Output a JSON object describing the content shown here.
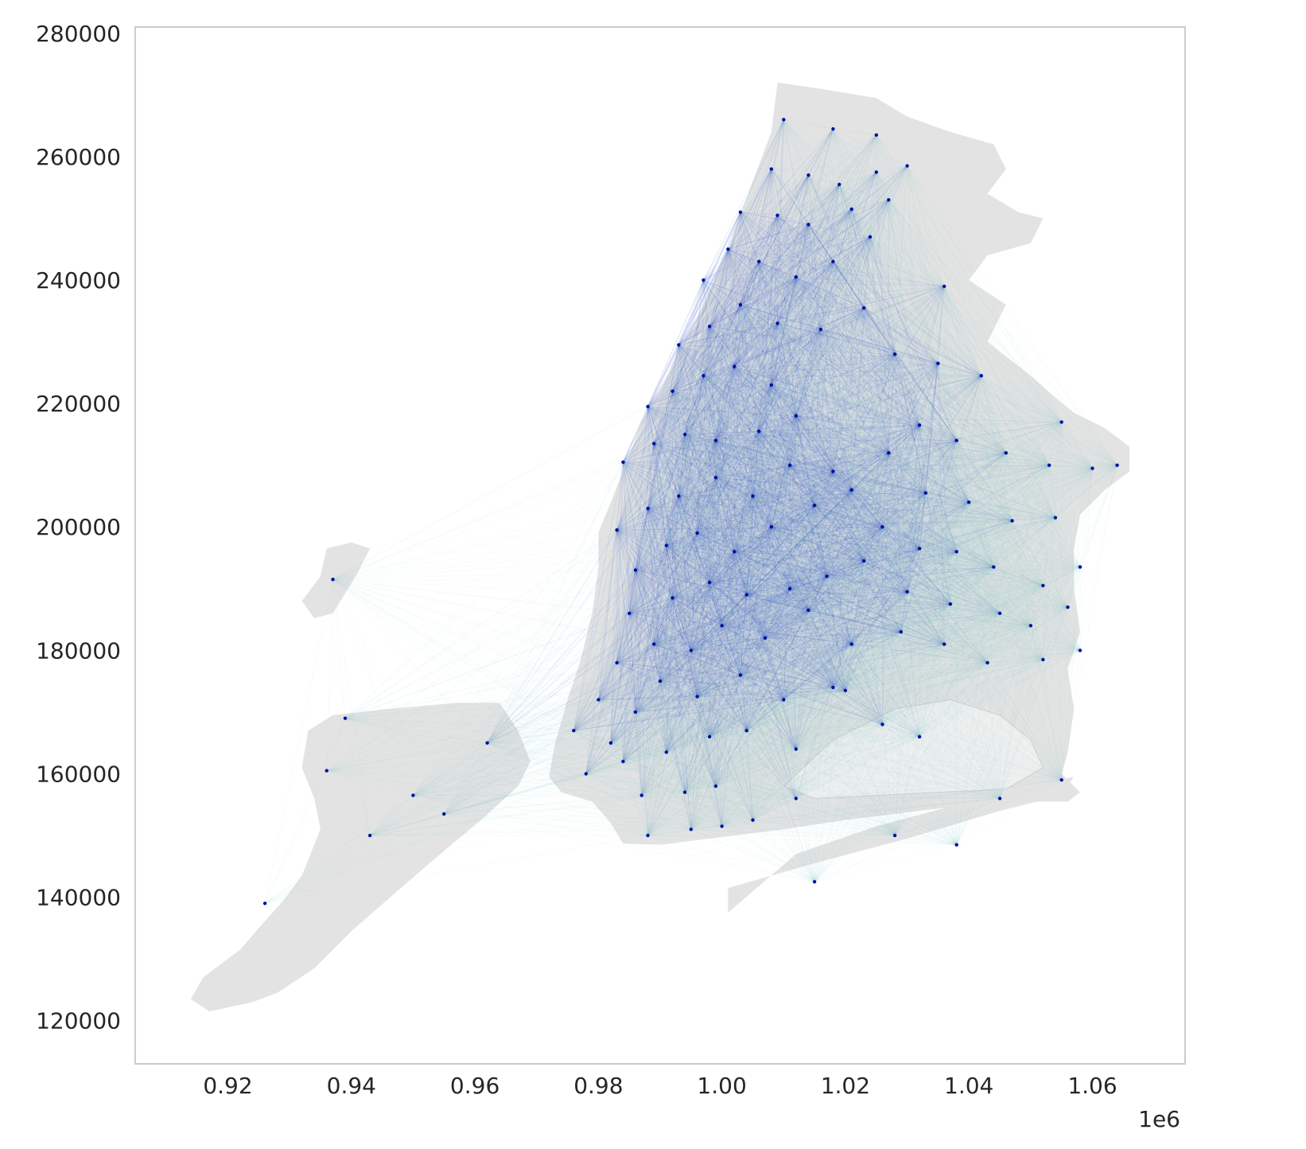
{
  "chart_data": {
    "type": "scatter",
    "title": "",
    "xlabel": "",
    "ylabel": "",
    "x_offset_label": "1e6",
    "xlim": [
      0.905,
      1.075
    ],
    "ylim": [
      113000,
      281000
    ],
    "grid": false,
    "x_ticks": [
      {
        "value": 0.92,
        "label": "0.92"
      },
      {
        "value": 0.94,
        "label": "0.94"
      },
      {
        "value": 0.96,
        "label": "0.96"
      },
      {
        "value": 0.98,
        "label": "0.98"
      },
      {
        "value": 1.0,
        "label": "1.00"
      },
      {
        "value": 1.02,
        "label": "1.02"
      },
      {
        "value": 1.04,
        "label": "1.04"
      },
      {
        "value": 1.06,
        "label": "1.06"
      }
    ],
    "y_ticks": [
      {
        "value": 120000,
        "label": "120000"
      },
      {
        "value": 140000,
        "label": "140000"
      },
      {
        "value": 160000,
        "label": "160000"
      },
      {
        "value": 180000,
        "label": "180000"
      },
      {
        "value": 200000,
        "label": "200000"
      },
      {
        "value": 220000,
        "label": "220000"
      },
      {
        "value": 240000,
        "label": "240000"
      },
      {
        "value": 260000,
        "label": "260000"
      },
      {
        "value": 280000,
        "label": "280000"
      }
    ],
    "colors": {
      "land": "#e3e3e3",
      "land_dark": "#d0d0d0",
      "flow_light": "#8fd0d0",
      "flow_dark": "#1530c0",
      "node": "#0010a0",
      "frame": "#cccccc"
    },
    "regions": [
      {
        "name": "staten-island",
        "points": [
          [
            0.924,
            123000
          ],
          [
            0.917,
            121500
          ],
          [
            0.914,
            123500
          ],
          [
            0.916,
            127000
          ],
          [
            0.922,
            131500
          ],
          [
            0.925,
            135000
          ],
          [
            0.929,
            139500
          ],
          [
            0.932,
            143500
          ],
          [
            0.935,
            151000
          ],
          [
            0.934,
            156000
          ],
          [
            0.932,
            161000
          ],
          [
            0.933,
            167000
          ],
          [
            0.937,
            169500
          ],
          [
            0.946,
            170500
          ],
          [
            0.957,
            171500
          ],
          [
            0.964,
            171500
          ],
          [
            0.967,
            167000
          ],
          [
            0.969,
            162000
          ],
          [
            0.967,
            158000
          ],
          [
            0.961,
            152500
          ],
          [
            0.955,
            147500
          ],
          [
            0.948,
            141500
          ],
          [
            0.94,
            134500
          ],
          [
            0.934,
            128500
          ],
          [
            0.928,
            124500
          ]
        ]
      },
      {
        "name": "bayonne-strip",
        "points": [
          [
            0.935,
            192000
          ],
          [
            0.936,
            196500
          ],
          [
            0.94,
            197500
          ],
          [
            0.943,
            196500
          ],
          [
            0.941,
            192500
          ],
          [
            0.937,
            186000
          ],
          [
            0.934,
            185200
          ],
          [
            0.932,
            188000
          ]
        ]
      },
      {
        "name": "manhattan-bronx-queens-brooklyn",
        "points": [
          [
            0.973,
            165000
          ],
          [
            0.975,
            172000
          ],
          [
            0.977,
            178000
          ],
          [
            0.979,
            186000
          ],
          [
            0.98,
            193500
          ],
          [
            0.98,
            199000
          ],
          [
            0.982,
            204000
          ],
          [
            0.985,
            211500
          ],
          [
            0.987,
            217000
          ],
          [
            0.99,
            222000
          ],
          [
            0.993,
            228500
          ],
          [
            0.997,
            236000
          ],
          [
            1.001,
            245000
          ],
          [
            1.005,
            256000
          ],
          [
            1.008,
            264000
          ],
          [
            1.009,
            272000
          ],
          [
            1.016,
            271000
          ],
          [
            1.025,
            269500
          ],
          [
            1.03,
            266500
          ],
          [
            1.037,
            264000
          ],
          [
            1.044,
            262000
          ],
          [
            1.046,
            258000
          ],
          [
            1.043,
            254000
          ],
          [
            1.048,
            251000
          ],
          [
            1.052,
            250000
          ],
          [
            1.05,
            246000
          ],
          [
            1.043,
            244000
          ],
          [
            1.04,
            240000
          ],
          [
            1.046,
            236000
          ],
          [
            1.043,
            230000
          ],
          [
            1.05,
            224500
          ],
          [
            1.054,
            221000
          ],
          [
            1.057,
            218500
          ],
          [
            1.062,
            216000
          ],
          [
            1.066,
            213000
          ],
          [
            1.066,
            209000
          ],
          [
            1.062,
            206000
          ],
          [
            1.058,
            202000
          ],
          [
            1.057,
            196500
          ],
          [
            1.057,
            190000
          ],
          [
            1.058,
            183000
          ],
          [
            1.056,
            177000
          ],
          [
            1.057,
            170500
          ],
          [
            1.056,
            163500
          ],
          [
            1.055,
            160000
          ],
          [
            1.058,
            157000
          ],
          [
            1.056,
            155500
          ],
          [
            1.045,
            155500
          ],
          [
            1.032,
            154000
          ],
          [
            1.02,
            152500
          ],
          [
            1.01,
            151000
          ],
          [
            0.998,
            149500
          ],
          [
            0.99,
            148500
          ],
          [
            0.984,
            148700
          ],
          [
            0.982,
            152000
          ],
          [
            0.979,
            155500
          ],
          [
            0.974,
            157000
          ],
          [
            0.972,
            159500
          ]
        ]
      },
      {
        "name": "rockaway",
        "points": [
          [
            1.001,
            137500
          ],
          [
            1.001,
            141500
          ],
          [
            1.015,
            145500
          ],
          [
            1.03,
            149500
          ],
          [
            1.045,
            154000
          ],
          [
            1.055,
            156500
          ],
          [
            1.057,
            159500
          ],
          [
            1.052,
            158500
          ],
          [
            1.04,
            155500
          ],
          [
            1.025,
            151500
          ],
          [
            1.012,
            147000
          ]
        ]
      }
    ],
    "inner_water": [
      {
        "name": "jamaica-bay",
        "points": [
          [
            1.01,
            158000
          ],
          [
            1.018,
            165500
          ],
          [
            1.028,
            170500
          ],
          [
            1.037,
            172000
          ],
          [
            1.045,
            169500
          ],
          [
            1.05,
            165500
          ],
          [
            1.052,
            161000
          ],
          [
            1.046,
            157500
          ],
          [
            1.035,
            157000
          ],
          [
            1.025,
            156500
          ],
          [
            1.015,
            156000
          ]
        ]
      }
    ],
    "nodes": [
      [
        0.988,
        150000
      ],
      [
        0.995,
        151000
      ],
      [
        1.0,
        151500
      ],
      [
        1.005,
        152500
      ],
      [
        1.012,
        156000
      ],
      [
        0.987,
        156500
      ],
      [
        0.994,
        157000
      ],
      [
        0.999,
        158000
      ],
      [
        0.978,
        160000
      ],
      [
        0.984,
        162000
      ],
      [
        0.976,
        167000
      ],
      [
        0.982,
        165000
      ],
      [
        0.991,
        163500
      ],
      [
        0.998,
        166000
      ],
      [
        1.004,
        167000
      ],
      [
        1.012,
        164000
      ],
      [
        0.98,
        172000
      ],
      [
        0.986,
        170000
      ],
      [
        0.99,
        175000
      ],
      [
        0.996,
        172500
      ],
      [
        1.003,
        176000
      ],
      [
        1.01,
        172000
      ],
      [
        1.018,
        174000
      ],
      [
        0.983,
        178000
      ],
      [
        0.989,
        181000
      ],
      [
        0.995,
        180000
      ],
      [
        1.0,
        184000
      ],
      [
        1.007,
        182000
      ],
      [
        1.014,
        186500
      ],
      [
        1.021,
        181000
      ],
      [
        0.985,
        186000
      ],
      [
        0.992,
        188500
      ],
      [
        0.998,
        191000
      ],
      [
        1.004,
        189000
      ],
      [
        1.011,
        190000
      ],
      [
        1.017,
        192000
      ],
      [
        1.023,
        194500
      ],
      [
        0.986,
        193000
      ],
      [
        0.991,
        197000
      ],
      [
        0.996,
        199000
      ],
      [
        1.002,
        196000
      ],
      [
        1.008,
        200000
      ],
      [
        1.015,
        203500
      ],
      [
        1.021,
        206000
      ],
      [
        0.983,
        199500
      ],
      [
        0.988,
        203000
      ],
      [
        0.993,
        205000
      ],
      [
        0.999,
        208000
      ],
      [
        1.005,
        205000
      ],
      [
        1.011,
        210000
      ],
      [
        1.018,
        209000
      ],
      [
        0.984,
        210500
      ],
      [
        0.989,
        213500
      ],
      [
        0.994,
        215000
      ],
      [
        0.999,
        214000
      ],
      [
        1.006,
        215500
      ],
      [
        1.012,
        218000
      ],
      [
        0.988,
        219500
      ],
      [
        0.992,
        222000
      ],
      [
        0.997,
        224500
      ],
      [
        1.002,
        226000
      ],
      [
        1.008,
        223000
      ],
      [
        0.993,
        229500
      ],
      [
        0.998,
        232500
      ],
      [
        1.003,
        236000
      ],
      [
        1.009,
        233000
      ],
      [
        1.016,
        232000
      ],
      [
        1.023,
        235500
      ],
      [
        0.997,
        240000
      ],
      [
        1.001,
        245000
      ],
      [
        1.006,
        243000
      ],
      [
        1.012,
        240500
      ],
      [
        1.018,
        243000
      ],
      [
        1.024,
        247000
      ],
      [
        1.003,
        251000
      ],
      [
        1.009,
        250500
      ],
      [
        1.014,
        249000
      ],
      [
        1.021,
        251500
      ],
      [
        1.027,
        253000
      ],
      [
        1.008,
        258000
      ],
      [
        1.014,
        257000
      ],
      [
        1.019,
        255500
      ],
      [
        1.025,
        257500
      ],
      [
        1.03,
        258500
      ],
      [
        1.01,
        266000
      ],
      [
        1.018,
        264500
      ],
      [
        1.025,
        263500
      ],
      [
        1.036,
        239000
      ],
      [
        1.028,
        228000
      ],
      [
        1.035,
        226500
      ],
      [
        1.042,
        224500
      ],
      [
        1.032,
        216500
      ],
      [
        1.038,
        214000
      ],
      [
        1.046,
        212000
      ],
      [
        1.053,
        210000
      ],
      [
        1.027,
        212000
      ],
      [
        1.033,
        205500
      ],
      [
        1.04,
        204000
      ],
      [
        1.047,
        201000
      ],
      [
        1.054,
        201500
      ],
      [
        1.06,
        209500
      ],
      [
        1.064,
        210000
      ],
      [
        1.055,
        217000
      ],
      [
        1.026,
        200000
      ],
      [
        1.032,
        196500
      ],
      [
        1.038,
        196000
      ],
      [
        1.044,
        193500
      ],
      [
        1.052,
        190500
      ],
      [
        1.058,
        193500
      ],
      [
        1.03,
        189500
      ],
      [
        1.037,
        187500
      ],
      [
        1.045,
        186000
      ],
      [
        1.05,
        184000
      ],
      [
        1.056,
        187000
      ],
      [
        1.029,
        183000
      ],
      [
        1.036,
        181000
      ],
      [
        1.043,
        178000
      ],
      [
        1.052,
        178500
      ],
      [
        1.058,
        180000
      ],
      [
        1.02,
        173500
      ],
      [
        1.026,
        168000
      ],
      [
        1.032,
        166000
      ],
      [
        1.045,
        156000
      ],
      [
        1.055,
        159000
      ],
      [
        1.028,
        150000
      ],
      [
        1.038,
        148500
      ],
      [
        0.937,
        191500
      ],
      [
        0.939,
        169000
      ],
      [
        0.936,
        160500
      ],
      [
        0.962,
        165000
      ],
      [
        0.955,
        153500
      ],
      [
        0.95,
        156500
      ],
      [
        0.926,
        139000
      ],
      [
        0.943,
        150000
      ],
      [
        1.015,
        142500
      ]
    ]
  }
}
